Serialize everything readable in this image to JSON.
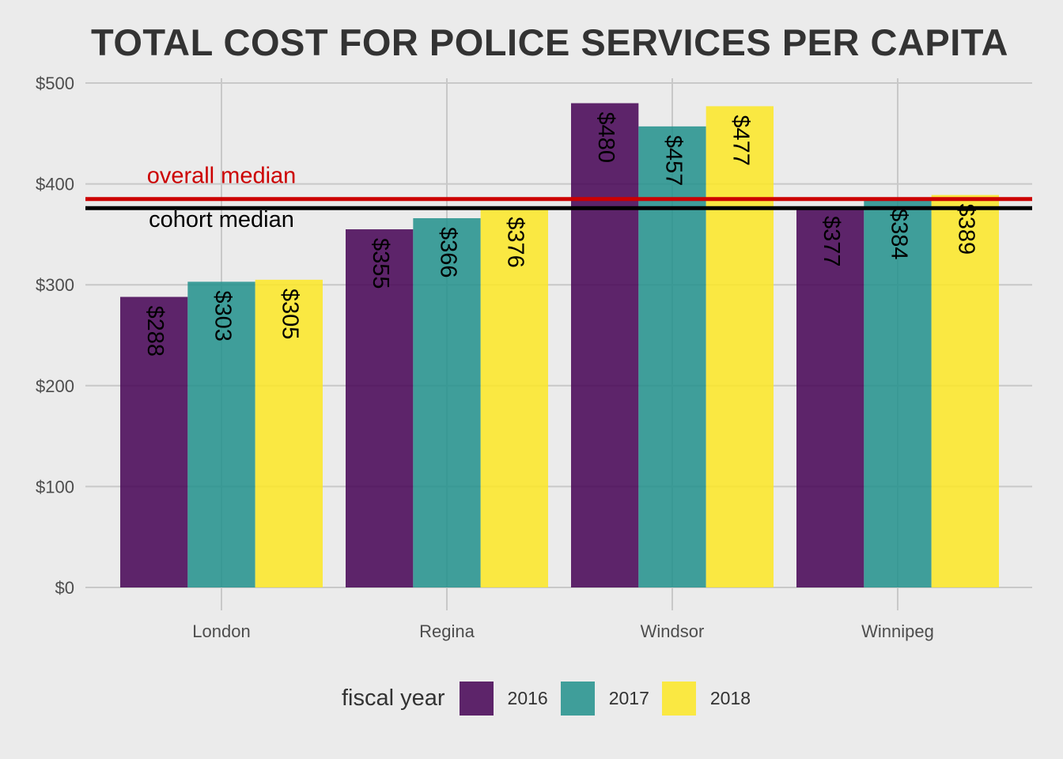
{
  "chart_data": {
    "type": "bar",
    "title": "TOTAL COST FOR POLICE SERVICES PER CAPITA",
    "xlabel": "",
    "ylabel": "",
    "ylim": [
      0,
      500
    ],
    "y_ticks": [
      "$0",
      "$100",
      "$200",
      "$300",
      "$400",
      "$500"
    ],
    "y_tick_values": [
      0,
      100,
      200,
      300,
      400,
      500
    ],
    "categories": [
      "London",
      "Regina",
      "Windsor",
      "Winnipeg"
    ],
    "series": [
      {
        "name": "2016",
        "color": "#440154",
        "values": [
          288,
          355,
          480,
          377
        ],
        "labels": [
          "$288",
          "$355",
          "$480",
          "$377"
        ]
      },
      {
        "name": "2017",
        "color": "#21908C",
        "values": [
          303,
          366,
          457,
          384
        ],
        "labels": [
          "$303",
          "$366",
          "$457",
          "$384"
        ]
      },
      {
        "name": "2018",
        "color": "#FDE725",
        "values": [
          305,
          376,
          477,
          389
        ],
        "labels": [
          "$305",
          "$376",
          "$477",
          "$389"
        ]
      }
    ],
    "reference_lines": [
      {
        "label": "overall median",
        "value": 385,
        "color": "#cc0000"
      },
      {
        "label": "cohort median",
        "value": 376,
        "color": "#000000"
      }
    ],
    "legend": {
      "title": "fiscal year",
      "position": "bottom"
    },
    "grid": true
  }
}
